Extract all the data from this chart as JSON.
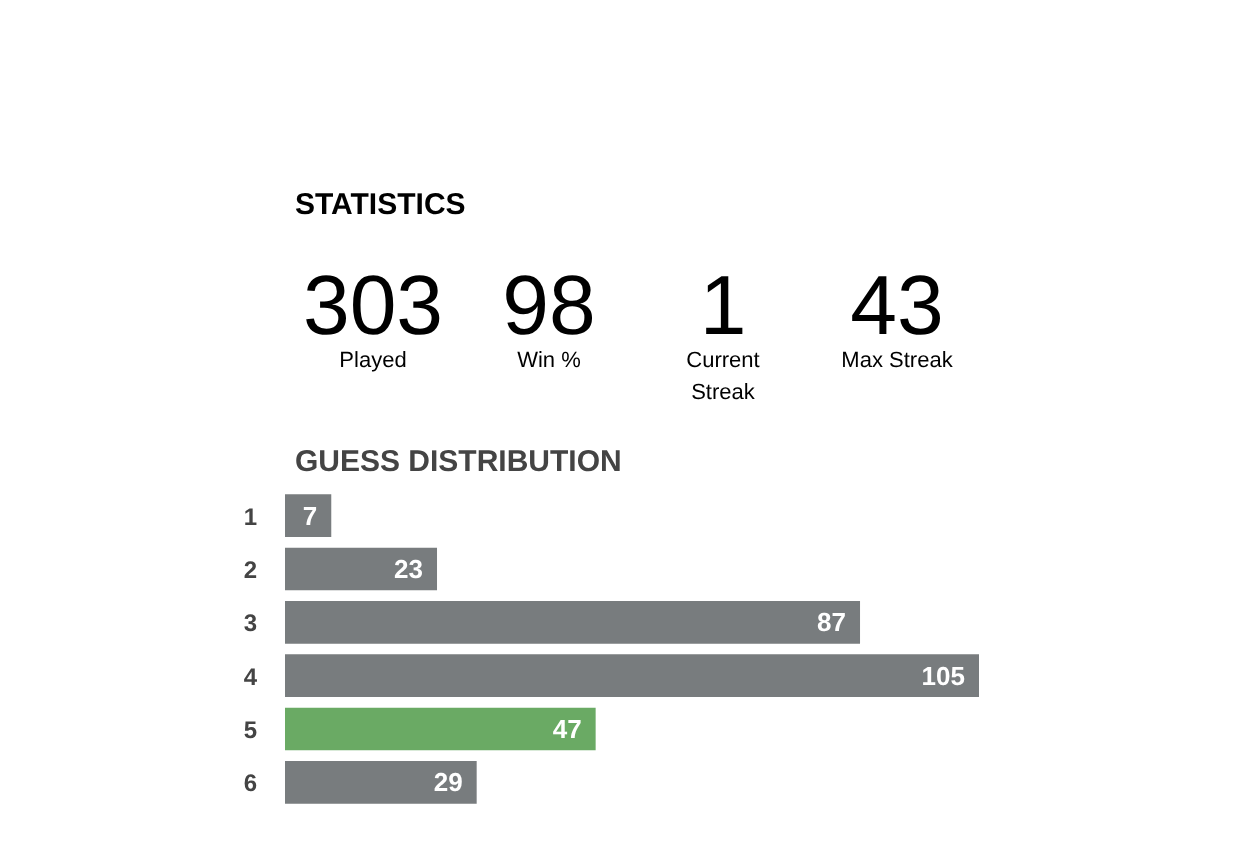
{
  "chart_data": [
    {
      "type": "other",
      "title": "STATISTICS",
      "categories": [
        "Played",
        "Win %",
        "Current Streak",
        "Max Streak"
      ],
      "values": [
        303,
        98,
        1,
        43
      ],
      "data_labels": true
    },
    {
      "type": "bar",
      "title": "GUESS DISTRIBUTION",
      "orientation": "horizontal",
      "categories": [
        "1",
        "2",
        "3",
        "4",
        "5",
        "6"
      ],
      "values": [
        7,
        23,
        87,
        105,
        47,
        29
      ],
      "colors": [
        "#787c7e",
        "#787c7e",
        "#787c7e",
        "#787c7e",
        "#6aaa64",
        "#787c7e"
      ],
      "data_labels": true,
      "grid": false
    }
  ]
}
